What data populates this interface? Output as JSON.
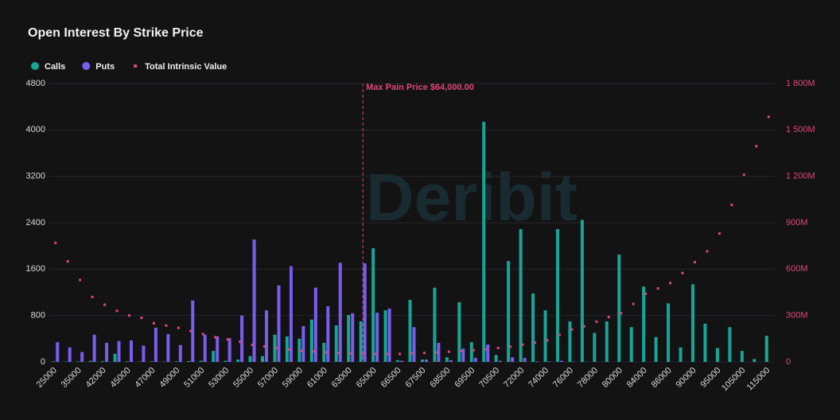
{
  "chart_data": {
    "type": "bar",
    "title": "Open Interest By Strike Price",
    "watermark": "Deribit",
    "annotation": "Max Pain Price $64,000.00",
    "categories": [
      "25000",
      null,
      "35000",
      null,
      "42000",
      null,
      "45000",
      null,
      "47000",
      null,
      "49000",
      null,
      "51000",
      null,
      "53000",
      null,
      "55000",
      null,
      "57000",
      null,
      "59000",
      null,
      "61000",
      null,
      "63000",
      null,
      "65000",
      null,
      "66500",
      null,
      "67500",
      null,
      "68500",
      null,
      "69500",
      null,
      "70500",
      null,
      "72000",
      null,
      "74000",
      null,
      "76000",
      null,
      "78000",
      null,
      "80000",
      null,
      "84000",
      null,
      "86000",
      null,
      "90000",
      null,
      "95000",
      null,
      "105000",
      null,
      "115000"
    ],
    "series": [
      {
        "name": "Calls",
        "color": "#17a596",
        "values": [
          10,
          5,
          10,
          20,
          15,
          140,
          10,
          5,
          10,
          5,
          10,
          15,
          20,
          190,
          20,
          40,
          100,
          100,
          470,
          440,
          400,
          730,
          330,
          630,
          810,
          700,
          1960,
          890,
          30,
          1070,
          40,
          1280,
          80,
          1030,
          340,
          4140,
          120,
          1740,
          2290,
          1180,
          890,
          2290,
          700,
          2450,
          500,
          700,
          1850,
          600,
          1300,
          430,
          1010,
          250,
          1340,
          660,
          240,
          600,
          190,
          50,
          450
        ]
      },
      {
        "name": "Puts",
        "color": "#7a5cf0",
        "values": [
          340,
          250,
          170,
          470,
          330,
          360,
          370,
          280,
          590,
          480,
          290,
          1060,
          470,
          440,
          410,
          800,
          2110,
          890,
          1320,
          1650,
          620,
          1280,
          960,
          1710,
          840,
          1700,
          850,
          920,
          20,
          600,
          40,
          330,
          30,
          230,
          70,
          300,
          20,
          80,
          70,
          10,
          10,
          20,
          5,
          5,
          0,
          0,
          0,
          0,
          0,
          0,
          0,
          0,
          0,
          0,
          0,
          0,
          0,
          0,
          0
        ]
      },
      {
        "name": "Total Intrinsic Value",
        "color": "#e0457b",
        "type": "scatter",
        "axis": "y2",
        "values": [
          770,
          650,
          530,
          420,
          370,
          330,
          300,
          285,
          250,
          235,
          220,
          200,
          180,
          160,
          145,
          130,
          110,
          100,
          90,
          80,
          72,
          68,
          62,
          58,
          55,
          52,
          52,
          52,
          52,
          55,
          58,
          62,
          66,
          70,
          76,
          82,
          90,
          98,
          112,
          125,
          140,
          175,
          210,
          230,
          260,
          290,
          315,
          375,
          440,
          475,
          510,
          575,
          645,
          715,
          830,
          1015,
          1210,
          1395,
          1585
        ]
      }
    ],
    "ylim": [
      0,
      4800
    ],
    "yticks": [
      0,
      800,
      1600,
      2400,
      3200,
      4000,
      4800
    ],
    "y2lim": [
      0,
      1800
    ],
    "y2ticks": [
      0,
      {
        "value": 300,
        "label": "300M"
      },
      {
        "value": 600,
        "label": "600M"
      },
      {
        "value": 900,
        "label": "900M"
      },
      {
        "value": 1200,
        "label": "1 200M"
      },
      {
        "value": 1500,
        "label": "1 500M"
      },
      {
        "value": 1800,
        "label": "1 800M"
      }
    ],
    "grid": true
  }
}
